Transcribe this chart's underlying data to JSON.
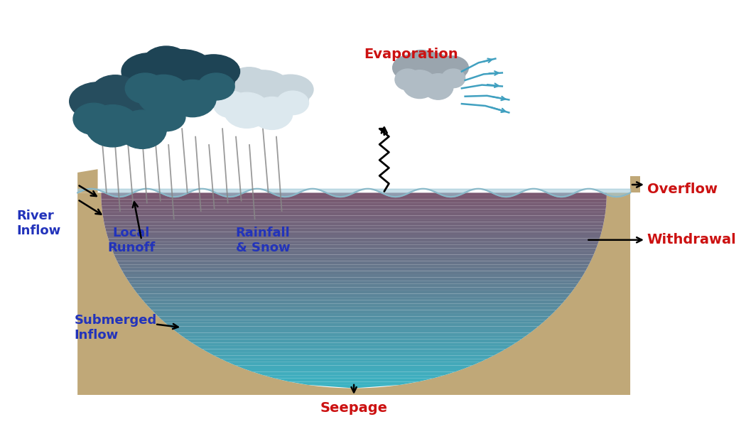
{
  "background_color": "#ffffff",
  "water_top_color": "#7a5870",
  "water_bottom_color": "#3ab5c5",
  "water_mid_color": "#5a8090",
  "ground_color": "#c0a878",
  "ground_edge_color": "#b09060",
  "wave_color": "#a0c8d8",
  "rain_color": "#888888",
  "label_blue": "#2233bb",
  "label_red": "#cc1111",
  "label_black": "#111111",
  "dark_cloud_color1": "#2a5568",
  "dark_cloud_color2": "#1a3545",
  "dark_cloud_color3": "#3a7090",
  "light_cloud_color": "#d0dde5",
  "light_cloud_color2": "#e8eff3",
  "evap_cloud_color": "#a8b0b8",
  "wind_color": "#40a0c0",
  "labels": {
    "river_inflow": "River\nInflow",
    "local_runoff": "Local\nRunoff",
    "rainfall_snow": "Rainfall\n& Snow",
    "evaporation": "Evaporation",
    "overflow": "Overflow",
    "withdrawal": "Withdrawal",
    "submerged_inflow": "Submerged\nInflow",
    "seepage": "Seepage"
  }
}
